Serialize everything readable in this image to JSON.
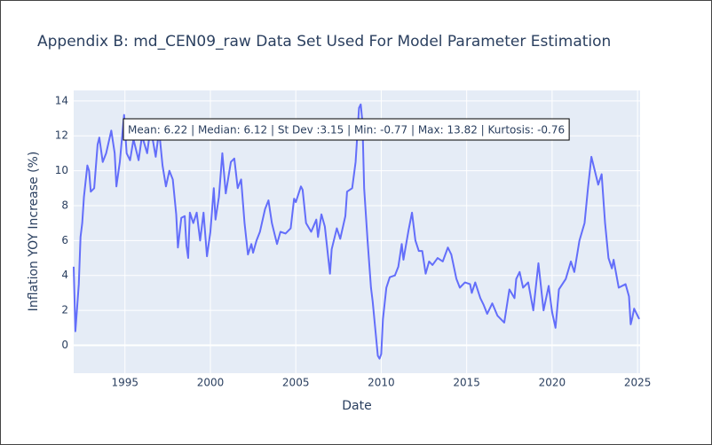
{
  "chart_data": {
    "type": "line",
    "title": "Appendix B: md_CEN09_raw Data Set Used For Model Parameter Estimation",
    "x_label": "Date",
    "y_label": "Inflation YOY Increase (%)",
    "annotation": "Mean: 6.22 | Median: 6.12 | St Dev :3.15 | Min: -0.77 | Max: 13.82 | Kurtosis: -0.76",
    "x": [
      1992.0,
      1992.1,
      1992.3,
      1992.4,
      1992.5,
      1992.6,
      1992.8,
      1992.9,
      1993.0,
      1993.2,
      1993.4,
      1993.5,
      1993.7,
      1993.9,
      1994.2,
      1994.4,
      1994.5,
      1994.7,
      1994.95,
      1995.1,
      1995.3,
      1995.5,
      1995.8,
      1996.0,
      1996.3,
      1996.5,
      1996.8,
      1997.0,
      1997.2,
      1997.4,
      1997.6,
      1997.8,
      1998.0,
      1998.1,
      1998.3,
      1998.5,
      1998.6,
      1998.7,
      1998.8,
      1999.0,
      1999.2,
      1999.4,
      1999.6,
      1999.8,
      2000.0,
      2000.2,
      2000.3,
      2000.5,
      2000.7,
      2000.9,
      2001.0,
      2001.2,
      2001.4,
      2001.6,
      2001.8,
      2002.0,
      2002.2,
      2002.4,
      2002.5,
      2002.7,
      2002.9,
      2003.2,
      2003.4,
      2003.6,
      2003.9,
      2004.1,
      2004.4,
      2004.7,
      2004.9,
      2005.0,
      2005.3,
      2005.4,
      2005.6,
      2005.9,
      2006.2,
      2006.3,
      2006.5,
      2006.7,
      2007.0,
      2007.1,
      2007.4,
      2007.6,
      2007.9,
      2008.0,
      2008.3,
      2008.5,
      2008.7,
      2008.8,
      2008.9,
      2009.0,
      2009.2,
      2009.4,
      2009.5,
      2009.8,
      2009.9,
      2010.0,
      2010.1,
      2010.3,
      2010.5,
      2010.8,
      2011.0,
      2011.2,
      2011.3,
      2011.6,
      2011.8,
      2012.0,
      2012.2,
      2012.4,
      2012.6,
      2012.8,
      2013.0,
      2013.3,
      2013.6,
      2013.9,
      2014.1,
      2014.4,
      2014.6,
      2014.9,
      2015.2,
      2015.3,
      2015.5,
      2015.8,
      2016.0,
      2016.2,
      2016.5,
      2016.8,
      2017.2,
      2017.5,
      2017.8,
      2017.9,
      2018.1,
      2018.3,
      2018.6,
      2018.9,
      2019.2,
      2019.5,
      2019.8,
      2020.0,
      2020.2,
      2020.4,
      2020.8,
      2021.1,
      2021.3,
      2021.6,
      2021.9,
      2022.1,
      2022.3,
      2022.5,
      2022.7,
      2022.9,
      2023.1,
      2023.3,
      2023.5,
      2023.6,
      2023.9,
      2024.3,
      2024.5,
      2024.6,
      2024.7,
      2024.8,
      2025.1
    ],
    "series": [
      {
        "name": "md_CEN09_raw",
        "color": "#636efa",
        "values": [
          4.5,
          0.8,
          3.5,
          6.2,
          7,
          8.5,
          10.3,
          10,
          8.8,
          9,
          11.5,
          11.9,
          10.5,
          11,
          12.3,
          11,
          9.1,
          10.5,
          13.2,
          11,
          10.6,
          11.8,
          10.6,
          12,
          11,
          12.5,
          10.8,
          12.3,
          10.3,
          9.1,
          10,
          9.5,
          7.5,
          5.6,
          7.3,
          7.4,
          5.7,
          5,
          7.6,
          7,
          7.6,
          6,
          7.6,
          5.1,
          6.5,
          9,
          7.2,
          8.5,
          11,
          8.7,
          9.3,
          10.5,
          10.7,
          9,
          9.5,
          7,
          5.2,
          5.8,
          5.3,
          6,
          6.5,
          7.8,
          8.3,
          7,
          5.8,
          6.5,
          6.4,
          6.7,
          8.4,
          8.2,
          9.1,
          8.9,
          7,
          6.5,
          7.2,
          6.2,
          7.5,
          6.8,
          4.1,
          5.5,
          6.7,
          6.1,
          7.4,
          8.8,
          9,
          10.5,
          13.6,
          13.8,
          12.8,
          9,
          6,
          3.3,
          2.5,
          -0.6,
          -0.77,
          -0.5,
          1.5,
          3.3,
          3.9,
          4,
          4.5,
          5.8,
          4.9,
          6.6,
          7.6,
          6,
          5.4,
          5.4,
          4.1,
          4.8,
          4.6,
          5,
          4.8,
          5.6,
          5.2,
          3.8,
          3.3,
          3.6,
          3.5,
          3,
          3.6,
          2.7,
          2.3,
          1.8,
          2.4,
          1.7,
          1.3,
          3.2,
          2.7,
          3.8,
          4.2,
          3.3,
          3.6,
          2,
          4.7,
          2,
          3.4,
          1.9,
          1,
          3.2,
          3.8,
          4.8,
          4.2,
          6,
          7,
          9,
          10.8,
          10,
          9.2,
          9.8,
          7,
          5,
          4.4,
          4.9,
          3.3,
          3.5,
          2.8,
          1.2,
          1.6,
          2.1,
          1.5
        ]
      }
    ],
    "xlim": [
      1992.0,
      2025.15
    ],
    "xticks": [
      1995,
      2000,
      2005,
      2010,
      2015,
      2020,
      2025
    ],
    "ylim": [
      -1.6,
      14.6
    ],
    "yticks": [
      0,
      2,
      4,
      6,
      8,
      10,
      12,
      14
    ],
    "grid": true
  }
}
